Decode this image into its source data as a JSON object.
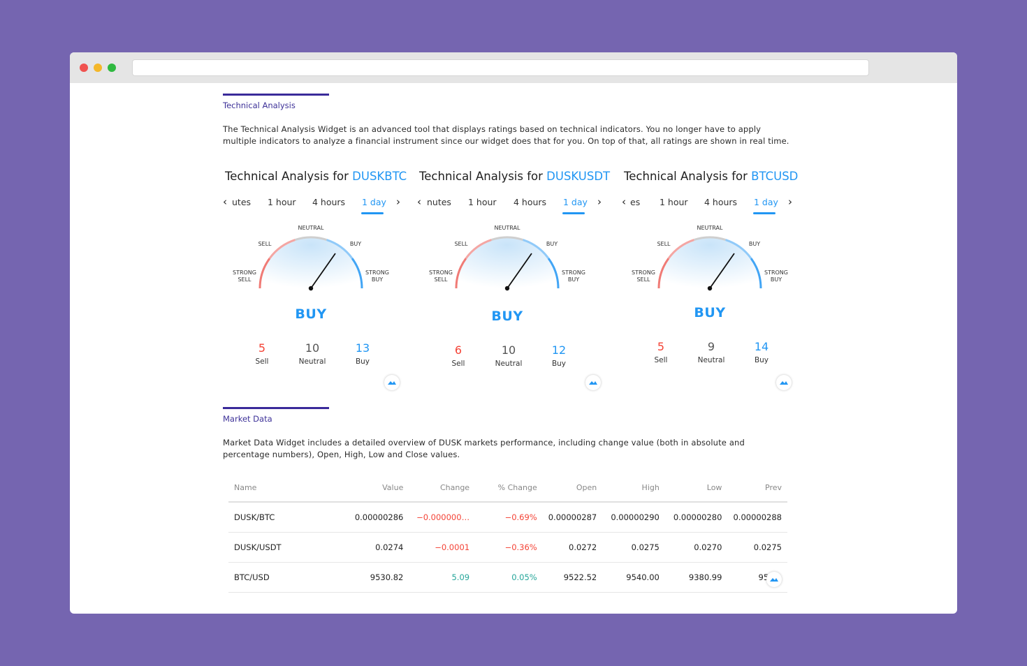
{
  "technical_analysis": {
    "section_label": "Technical Analysis",
    "description_line1": "The Technical Analysis Widget is an advanced tool that displays ratings based on technical indicators. You no longer have to apply",
    "description_line2": "multiple indicators to analyze a financial instrument since our widget does that for you. On top of that, all ratings are shown in real time.",
    "widgets": [
      {
        "title_prefix": "Technical Analysis for ",
        "symbol": "DUSKBTC",
        "tabs": [
          "utes",
          "1 hour",
          "4 hours",
          "1 day"
        ],
        "active_tab": "1 day",
        "gauge_labels": {
          "neutral": "NEUTRAL",
          "sell": "SELL",
          "buy": "BUY",
          "strong": "STRONG",
          "strong_sell": "SELL",
          "strong_buy": "BUY"
        },
        "rating": "BUY",
        "sell": "5",
        "neutral": "10",
        "buy": "13",
        "sell_label": "Sell",
        "neutral_label": "Neutral",
        "buy_label": "Buy"
      },
      {
        "title_prefix": "Technical Analysis for ",
        "symbol": "DUSKUSDT",
        "tabs": [
          "nutes",
          "1 hour",
          "4 hours",
          "1 day"
        ],
        "active_tab": "1 day",
        "gauge_labels": {
          "neutral": "NEUTRAL",
          "sell": "SELL",
          "buy": "BUY",
          "strong": "STRONG",
          "strong_sell": "SELL",
          "strong_buy": "BUY"
        },
        "rating": "BUY",
        "sell": "6",
        "neutral": "10",
        "buy": "12",
        "sell_label": "Sell",
        "neutral_label": "Neutral",
        "buy_label": "Buy"
      },
      {
        "title_prefix": "Technical Analysis for ",
        "symbol": "BTCUSD",
        "tabs": [
          "es",
          "1 hour",
          "4 hours",
          "1 day"
        ],
        "active_tab": "1 day",
        "gauge_labels": {
          "neutral": "NEUTRAL",
          "sell": "SELL",
          "buy": "BUY",
          "strong": "STRONG",
          "strong_sell": "SELL",
          "strong_buy": "BUY"
        },
        "rating": "BUY",
        "sell": "5",
        "neutral": "9",
        "buy": "14",
        "sell_label": "Sell",
        "neutral_label": "Neutral",
        "buy_label": "Buy"
      }
    ]
  },
  "market_data": {
    "section_label": "Market Data",
    "description_line1": "Market Data Widget includes a detailed overview of DUSK markets performance, including change value (both in absolute and",
    "description_line2": "percentage numbers), Open, High, Low and Close values.",
    "columns": [
      "Name",
      "Value",
      "Change",
      "% Change",
      "Open",
      "High",
      "Low",
      "Prev"
    ],
    "rows": [
      {
        "name": "DUSK/BTC",
        "value": "0.00000286",
        "change": "−0.000000…",
        "pct": "−0.69%",
        "open": "0.00000287",
        "high": "0.00000290",
        "low": "0.00000280",
        "prev": "0.00000288",
        "dir": "neg"
      },
      {
        "name": "DUSK/USDT",
        "value": "0.0274",
        "change": "−0.0001",
        "pct": "−0.36%",
        "open": "0.0272",
        "high": "0.0275",
        "low": "0.0270",
        "prev": "0.0275",
        "dir": "neg"
      },
      {
        "name": "BTC/USD",
        "value": "9530.82",
        "change": "5.09",
        "pct": "0.05%",
        "open": "9522.52",
        "high": "9540.00",
        "low": "9380.99",
        "prev": "952…",
        "dir": "pos"
      }
    ]
  },
  "colors": {
    "accent": "#2196f3",
    "sell": "#f44336",
    "positive": "#26a69a",
    "section_rule": "#3a2a9a",
    "background": "#7565b0"
  }
}
